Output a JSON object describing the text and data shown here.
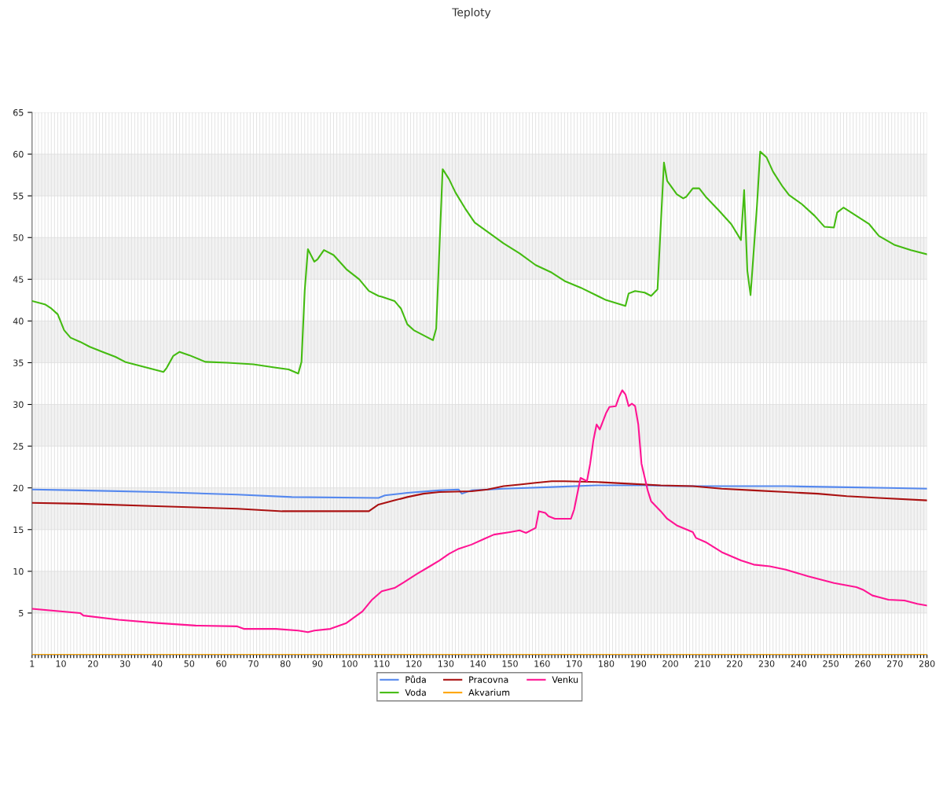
{
  "chart_data": {
    "type": "line",
    "title": "Teploty",
    "series": [
      {
        "name": "Půda",
        "color": "#5588ee",
        "x": [
          1,
          16,
          40,
          65,
          82,
          109,
          111,
          118,
          128,
          134,
          135,
          138,
          148,
          163,
          177,
          192,
          202,
          236,
          251,
          268,
          280
        ],
        "values": [
          19.8,
          19.7,
          19.5,
          19.2,
          18.9,
          18.8,
          19.1,
          19.4,
          19.7,
          19.8,
          19.3,
          19.7,
          19.9,
          20.1,
          20.3,
          20.3,
          20.2,
          20.2,
          20.1,
          20.0,
          19.9
        ]
      },
      {
        "name": "Voda",
        "color": "#44bb11",
        "x": [
          1,
          5,
          7,
          9,
          11,
          13,
          16,
          19,
          23,
          27,
          30,
          34,
          38,
          42,
          43,
          45,
          47,
          50,
          55,
          62,
          70,
          77,
          81,
          84,
          85,
          86,
          87,
          89,
          90,
          92,
          95,
          99,
          103,
          106,
          109,
          110,
          114,
          116,
          118,
          120,
          126,
          127,
          129,
          131,
          133,
          136,
          139,
          143,
          148,
          153,
          158,
          163,
          167,
          172,
          180,
          186,
          187,
          189,
          192,
          194,
          196,
          198,
          199,
          202,
          204,
          205,
          207,
          209,
          211,
          215,
          219,
          222,
          223,
          224,
          225,
          227,
          228,
          230,
          232,
          235,
          237,
          241,
          245,
          248,
          251,
          252,
          254,
          258,
          262,
          265,
          270,
          275,
          280
        ],
        "values": [
          42.4,
          42.0,
          41.5,
          40.8,
          38.9,
          38.0,
          37.5,
          36.9,
          36.3,
          35.7,
          35.1,
          34.7,
          34.3,
          33.9,
          34.4,
          35.8,
          36.3,
          35.9,
          35.1,
          35.0,
          34.8,
          34.4,
          34.2,
          33.7,
          35.1,
          43.6,
          48.6,
          47.1,
          47.4,
          48.5,
          47.9,
          46.2,
          45.0,
          43.6,
          43.0,
          42.9,
          42.4,
          41.5,
          39.6,
          38.9,
          37.7,
          39.1,
          58.2,
          57.0,
          55.4,
          53.5,
          51.8,
          50.7,
          49.3,
          48.1,
          46.7,
          45.8,
          44.8,
          44.0,
          42.5,
          41.8,
          43.3,
          43.6,
          43.4,
          43.0,
          43.8,
          59.0,
          56.8,
          55.2,
          54.7,
          54.9,
          55.9,
          55.9,
          54.9,
          53.3,
          51.6,
          49.7,
          55.7,
          46.0,
          43.1,
          53.8,
          60.3,
          59.6,
          57.9,
          56.1,
          55.1,
          54.0,
          52.6,
          51.3,
          51.2,
          53.0,
          53.6,
          52.6,
          51.6,
          50.2,
          49.1,
          48.5,
          48.0
        ]
      },
      {
        "name": "Pracovna",
        "color": "#aa1111",
        "x": [
          1,
          16,
          40,
          65,
          79,
          106,
          109,
          114,
          118,
          123,
          128,
          138,
          143,
          148,
          153,
          158,
          163,
          167,
          177,
          187,
          197,
          207,
          216,
          226,
          236,
          246,
          255,
          265,
          280
        ],
        "values": [
          18.2,
          18.1,
          17.8,
          17.5,
          17.2,
          17.2,
          18.0,
          18.5,
          18.9,
          19.3,
          19.5,
          19.6,
          19.8,
          20.2,
          20.4,
          20.6,
          20.8,
          20.8,
          20.7,
          20.5,
          20.3,
          20.2,
          19.9,
          19.7,
          19.5,
          19.3,
          19.0,
          18.8,
          18.5
        ]
      },
      {
        "name": "Akvarium",
        "color": "#ffa500",
        "x": [
          1,
          280
        ],
        "values": [
          0,
          0
        ]
      },
      {
        "name": "Venku",
        "color": "#ff1493",
        "x": [
          1,
          16,
          17,
          28,
          40,
          52,
          65,
          67,
          77,
          84,
          87,
          89,
          94,
          99,
          104,
          107,
          110,
          114,
          117,
          121,
          125,
          128,
          131,
          134,
          138,
          142,
          145,
          150,
          153,
          155,
          158,
          159,
          161,
          162,
          164,
          169,
          170,
          172,
          174,
          175,
          176,
          177,
          178,
          180,
          181,
          183,
          184,
          185,
          186,
          187,
          188,
          189,
          190,
          191,
          193,
          194,
          197,
          199,
          202,
          207,
          208,
          211,
          216,
          222,
          226,
          231,
          236,
          243,
          251,
          258,
          260,
          263,
          265,
          268,
          273,
          277,
          280
        ],
        "values": [
          5.5,
          5.0,
          4.7,
          4.2,
          3.8,
          3.5,
          3.4,
          3.1,
          3.1,
          2.9,
          2.7,
          2.9,
          3.1,
          3.8,
          5.2,
          6.6,
          7.6,
          8.0,
          8.7,
          9.7,
          10.6,
          11.3,
          12.1,
          12.7,
          13.2,
          13.9,
          14.4,
          14.7,
          14.9,
          14.6,
          15.2,
          17.2,
          17.0,
          16.6,
          16.3,
          16.3,
          17.4,
          21.2,
          20.8,
          22.9,
          25.7,
          27.6,
          27.0,
          29.0,
          29.7,
          29.8,
          30.9,
          31.7,
          31.2,
          29.8,
          30.1,
          29.8,
          27.6,
          22.9,
          19.6,
          18.4,
          17.2,
          16.3,
          15.5,
          14.7,
          14.0,
          13.5,
          12.3,
          11.3,
          10.8,
          10.6,
          10.2,
          9.4,
          8.6,
          8.1,
          7.8,
          7.1,
          6.9,
          6.6,
          6.5,
          6.1,
          5.9
        ]
      }
    ],
    "xlim": [
      1,
      280
    ],
    "xticks": [
      1,
      {
        "value": 2,
        "label": null
      },
      {
        "value": 3,
        "label": null
      },
      {
        "value": 4,
        "label": null
      },
      {
        "value": 5,
        "label": null
      },
      {
        "value": 6,
        "label": null
      },
      {
        "value": 7,
        "label": null
      },
      {
        "value": 8,
        "label": null
      },
      {
        "value": 9,
        "label": null
      },
      10,
      {
        "value": 11,
        "label": null
      },
      {
        "value": 12,
        "label": null
      },
      {
        "value": 13,
        "label": null
      },
      {
        "value": 14,
        "label": null
      },
      {
        "value": 15,
        "label": null
      },
      {
        "value": 16,
        "label": null
      },
      {
        "value": 17,
        "label": null
      },
      {
        "value": 18,
        "label": null
      },
      {
        "value": 19,
        "label": null
      },
      20,
      {
        "value": 21,
        "label": null
      },
      {
        "value": 22,
        "label": null
      },
      {
        "value": 23,
        "label": null
      },
      {
        "value": 24,
        "label": null
      },
      {
        "value": 25,
        "label": null
      },
      {
        "value": 26,
        "label": null
      },
      {
        "value": 27,
        "label": null
      },
      {
        "value": 28,
        "label": null
      },
      {
        "value": 29,
        "label": null
      },
      30,
      {
        "value": 31,
        "label": null
      },
      {
        "value": 32,
        "label": null
      },
      {
        "value": 33,
        "label": null
      },
      {
        "value": 34,
        "label": null
      },
      {
        "value": 35,
        "label": null
      },
      {
        "value": 36,
        "label": null
      },
      {
        "value": 37,
        "label": null
      },
      {
        "value": 38,
        "label": null
      },
      {
        "value": 39,
        "label": null
      },
      40,
      {
        "value": 41,
        "label": null
      },
      {
        "value": 42,
        "label": null
      },
      {
        "value": 43,
        "label": null
      },
      {
        "value": 44,
        "label": null
      },
      {
        "value": 45,
        "label": null
      },
      {
        "value": 46,
        "label": null
      },
      {
        "value": 47,
        "label": null
      },
      {
        "value": 48,
        "label": null
      },
      {
        "value": 49,
        "label": null
      },
      50,
      {
        "value": 51,
        "label": null
      },
      {
        "value": 52,
        "label": null
      },
      {
        "value": 53,
        "label": null
      },
      {
        "value": 54,
        "label": null
      },
      {
        "value": 55,
        "label": null
      },
      {
        "value": 56,
        "label": null
      },
      {
        "value": 57,
        "label": null
      },
      {
        "value": 58,
        "label": null
      },
      {
        "value": 59,
        "label": null
      },
      60,
      {
        "value": 61,
        "label": null
      },
      {
        "value": 62,
        "label": null
      },
      {
        "value": 63,
        "label": null
      },
      {
        "value": 64,
        "label": null
      },
      {
        "value": 65,
        "label": null
      },
      {
        "value": 66,
        "label": null
      },
      {
        "value": 67,
        "label": null
      },
      {
        "value": 68,
        "label": null
      },
      {
        "value": 69,
        "label": null
      },
      70,
      {
        "value": 71,
        "label": null
      },
      {
        "value": 72,
        "label": null
      },
      {
        "value": 73,
        "label": null
      },
      {
        "value": 74,
        "label": null
      },
      {
        "value": 75,
        "label": null
      },
      {
        "value": 76,
        "label": null
      },
      {
        "value": 77,
        "label": null
      },
      {
        "value": 78,
        "label": null
      },
      {
        "value": 79,
        "label": null
      },
      80,
      {
        "value": 81,
        "label": null
      },
      {
        "value": 82,
        "label": null
      },
      {
        "value": 83,
        "label": null
      },
      {
        "value": 84,
        "label": null
      },
      {
        "value": 85,
        "label": null
      },
      {
        "value": 86,
        "label": null
      },
      {
        "value": 87,
        "label": null
      },
      {
        "value": 88,
        "label": null
      },
      {
        "value": 89,
        "label": null
      },
      90,
      {
        "value": 91,
        "label": null
      },
      {
        "value": 92,
        "label": null
      },
      {
        "value": 93,
        "label": null
      },
      {
        "value": 94,
        "label": null
      },
      {
        "value": 95,
        "label": null
      },
      {
        "value": 96,
        "label": null
      },
      {
        "value": 97,
        "label": null
      },
      {
        "value": 98,
        "label": null
      },
      {
        "value": 99,
        "label": null
      },
      100,
      {
        "value": 101,
        "label": null
      },
      {
        "value": 102,
        "label": null
      },
      {
        "value": 103,
        "label": null
      },
      {
        "value": 104,
        "label": null
      },
      {
        "value": 105,
        "label": null
      },
      {
        "value": 106,
        "label": null
      },
      {
        "value": 107,
        "label": null
      },
      {
        "value": 108,
        "label": null
      },
      {
        "value": 109,
        "label": null
      },
      110,
      {
        "value": 111,
        "label": null
      },
      {
        "value": 112,
        "label": null
      },
      {
        "value": 113,
        "label": null
      },
      {
        "value": 114,
        "label": null
      },
      {
        "value": 115,
        "label": null
      },
      {
        "value": 116,
        "label": null
      },
      {
        "value": 117,
        "label": null
      },
      {
        "value": 118,
        "label": null
      },
      {
        "value": 119,
        "label": null
      },
      120,
      {
        "value": 121,
        "label": null
      },
      {
        "value": 122,
        "label": null
      },
      {
        "value": 123,
        "label": null
      },
      {
        "value": 124,
        "label": null
      },
      {
        "value": 125,
        "label": null
      },
      {
        "value": 126,
        "label": null
      },
      {
        "value": 127,
        "label": null
      },
      {
        "value": 128,
        "label": null
      },
      {
        "value": 129,
        "label": null
      },
      130,
      {
        "value": 131,
        "label": null
      },
      {
        "value": 132,
        "label": null
      },
      {
        "value": 133,
        "label": null
      },
      {
        "value": 134,
        "label": null
      },
      {
        "value": 135,
        "label": null
      },
      {
        "value": 136,
        "label": null
      },
      {
        "value": 137,
        "label": null
      },
      {
        "value": 138,
        "label": null
      },
      {
        "value": 139,
        "label": null
      },
      140,
      {
        "value": 141,
        "label": null
      },
      {
        "value": 142,
        "label": null
      },
      {
        "value": 143,
        "label": null
      },
      {
        "value": 144,
        "label": null
      },
      {
        "value": 145,
        "label": null
      },
      {
        "value": 146,
        "label": null
      },
      {
        "value": 147,
        "label": null
      },
      {
        "value": 148,
        "label": null
      },
      {
        "value": 149,
        "label": null
      },
      150,
      {
        "value": 151,
        "label": null
      },
      {
        "value": 152,
        "label": null
      },
      {
        "value": 153,
        "label": null
      },
      {
        "value": 154,
        "label": null
      },
      {
        "value": 155,
        "label": null
      },
      {
        "value": 156,
        "label": null
      },
      {
        "value": 157,
        "label": null
      },
      {
        "value": 158,
        "label": null
      },
      {
        "value": 159,
        "label": null
      },
      160,
      {
        "value": 161,
        "label": null
      },
      {
        "value": 162,
        "label": null
      },
      {
        "value": 163,
        "label": null
      },
      {
        "value": 164,
        "label": null
      },
      {
        "value": 165,
        "label": null
      },
      {
        "value": 166,
        "label": null
      },
      {
        "value": 167,
        "label": null
      },
      {
        "value": 168,
        "label": null
      },
      {
        "value": 169,
        "label": null
      },
      170,
      {
        "value": 171,
        "label": null
      },
      {
        "value": 172,
        "label": null
      },
      {
        "value": 173,
        "label": null
      },
      {
        "value": 174,
        "label": null
      },
      {
        "value": 175,
        "label": null
      },
      {
        "value": 176,
        "label": null
      },
      {
        "value": 177,
        "label": null
      },
      {
        "value": 178,
        "label": null
      },
      {
        "value": 179,
        "label": null
      },
      180,
      {
        "value": 181,
        "label": null
      },
      {
        "value": 182,
        "label": null
      },
      {
        "value": 183,
        "label": null
      },
      {
        "value": 184,
        "label": null
      },
      {
        "value": 185,
        "label": null
      },
      {
        "value": 186,
        "label": null
      },
      {
        "value": 187,
        "label": null
      },
      {
        "value": 188,
        "label": null
      },
      {
        "value": 189,
        "label": null
      },
      190,
      {
        "value": 191,
        "label": null
      },
      {
        "value": 192,
        "label": null
      },
      {
        "value": 193,
        "label": null
      },
      {
        "value": 194,
        "label": null
      },
      {
        "value": 195,
        "label": null
      },
      {
        "value": 196,
        "label": null
      },
      {
        "value": 197,
        "label": null
      },
      {
        "value": 198,
        "label": null
      },
      {
        "value": 199,
        "label": null
      },
      200,
      {
        "value": 201,
        "label": null
      },
      {
        "value": 202,
        "label": null
      },
      {
        "value": 203,
        "label": null
      },
      {
        "value": 204,
        "label": null
      },
      {
        "value": 205,
        "label": null
      },
      {
        "value": 206,
        "label": null
      },
      {
        "value": 207,
        "label": null
      },
      {
        "value": 208,
        "label": null
      },
      {
        "value": 209,
        "label": null
      },
      210,
      {
        "value": 211,
        "label": null
      },
      {
        "value": 212,
        "label": null
      },
      {
        "value": 213,
        "label": null
      },
      {
        "value": 214,
        "label": null
      },
      {
        "value": 215,
        "label": null
      },
      {
        "value": 216,
        "label": null
      },
      {
        "value": 217,
        "label": null
      },
      {
        "value": 218,
        "label": null
      },
      {
        "value": 219,
        "label": null
      },
      220,
      {
        "value": 221,
        "label": null
      },
      {
        "value": 222,
        "label": null
      },
      {
        "value": 223,
        "label": null
      },
      {
        "value": 224,
        "label": null
      },
      {
        "value": 225,
        "label": null
      },
      {
        "value": 226,
        "label": null
      },
      {
        "value": 227,
        "label": null
      },
      {
        "value": 228,
        "label": null
      },
      {
        "value": 229,
        "label": null
      },
      230,
      {
        "value": 231,
        "label": null
      },
      {
        "value": 232,
        "label": null
      },
      {
        "value": 233,
        "label": null
      },
      {
        "value": 234,
        "label": null
      },
      {
        "value": 235,
        "label": null
      },
      {
        "value": 236,
        "label": null
      },
      {
        "value": 237,
        "label": null
      },
      {
        "value": 238,
        "label": null
      },
      {
        "value": 239,
        "label": null
      },
      240,
      {
        "value": 241,
        "label": null
      },
      {
        "value": 242,
        "label": null
      },
      {
        "value": 243,
        "label": null
      },
      {
        "value": 244,
        "label": null
      },
      {
        "value": 245,
        "label": null
      },
      {
        "value": 246,
        "label": null
      },
      {
        "value": 247,
        "label": null
      },
      {
        "value": 248,
        "label": null
      },
      {
        "value": 249,
        "label": null
      },
      250,
      {
        "value": 251,
        "label": null
      },
      {
        "value": 252,
        "label": null
      },
      {
        "value": 253,
        "label": null
      },
      {
        "value": 254,
        "label": null
      },
      {
        "value": 255,
        "label": null
      },
      {
        "value": 256,
        "label": null
      },
      {
        "value": 257,
        "label": null
      },
      {
        "value": 258,
        "label": null
      },
      {
        "value": 259,
        "label": null
      },
      260,
      {
        "value": 261,
        "label": null
      },
      {
        "value": 262,
        "label": null
      },
      {
        "value": 263,
        "label": null
      },
      {
        "value": 264,
        "label": null
      },
      {
        "value": 265,
        "label": null
      },
      {
        "value": 266,
        "label": null
      },
      {
        "value": 267,
        "label": null
      },
      {
        "value": 268,
        "label": null
      },
      {
        "value": 269,
        "label": null
      },
      270,
      {
        "value": 271,
        "label": null
      },
      {
        "value": 272,
        "label": null
      },
      {
        "value": 273,
        "label": null
      },
      {
        "value": 274,
        "label": null
      },
      {
        "value": 275,
        "label": null
      },
      {
        "value": 276,
        "label": null
      },
      {
        "value": 277,
        "label": null
      },
      {
        "value": 278,
        "label": null
      },
      {
        "value": 279,
        "label": null
      },
      280
    ],
    "ylim": [
      0,
      65
    ],
    "yticks": [
      5,
      10,
      15,
      20,
      25,
      30,
      35,
      40,
      45,
      50,
      55,
      60,
      65
    ],
    "bands": [
      {
        "axis": "y",
        "from": 5,
        "to": 10,
        "color": "#f2f2f2"
      },
      {
        "axis": "y",
        "from": 15,
        "to": 20,
        "color": "#f2f2f2"
      },
      {
        "axis": "y",
        "from": 25,
        "to": 30,
        "color": "#f2f2f2"
      },
      {
        "axis": "y",
        "from": 35,
        "to": 40,
        "color": "#f2f2f2"
      },
      {
        "axis": "y",
        "from": 45,
        "to": 50,
        "color": "#f2f2f2"
      },
      {
        "axis": "y",
        "from": 55,
        "to": 60,
        "color": "#f2f2f2"
      }
    ],
    "grid": true,
    "legend": "bottom",
    "marker": "none",
    "line_style": "solid"
  }
}
